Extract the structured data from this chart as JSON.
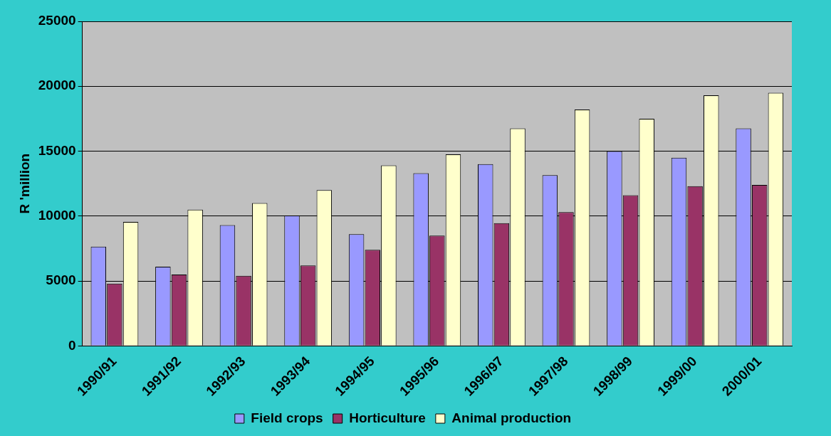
{
  "chart_data": {
    "type": "bar",
    "ylabel": "R 'million",
    "categories": [
      "1990/91",
      "1991/92",
      "1992/93",
      "1993/94",
      "1994/95",
      "1995/96",
      "1996/97",
      "1997/98",
      "1998/99",
      "1999/00",
      "2000/01"
    ],
    "series": [
      {
        "name": "Field crops",
        "color": "#9999ff",
        "values": [
          7650,
          6100,
          9300,
          10050,
          8600,
          13300,
          14000,
          13150,
          15000,
          14500,
          16750
        ]
      },
      {
        "name": "Horticulture",
        "color": "#993366",
        "values": [
          4800,
          5500,
          5400,
          6200,
          7400,
          8500,
          9450,
          10300,
          11600,
          12300,
          12400
        ]
      },
      {
        "name": "Animal production",
        "color": "#ffffcc",
        "values": [
          9550,
          10500,
          11000,
          12000,
          13900,
          14750,
          16750,
          18200,
          17500,
          19300,
          19500
        ]
      }
    ],
    "ylim": [
      0,
      25000
    ],
    "yticks": [
      0,
      5000,
      10000,
      15000,
      20000,
      25000
    ],
    "grid": "y",
    "legend": "bottom"
  }
}
